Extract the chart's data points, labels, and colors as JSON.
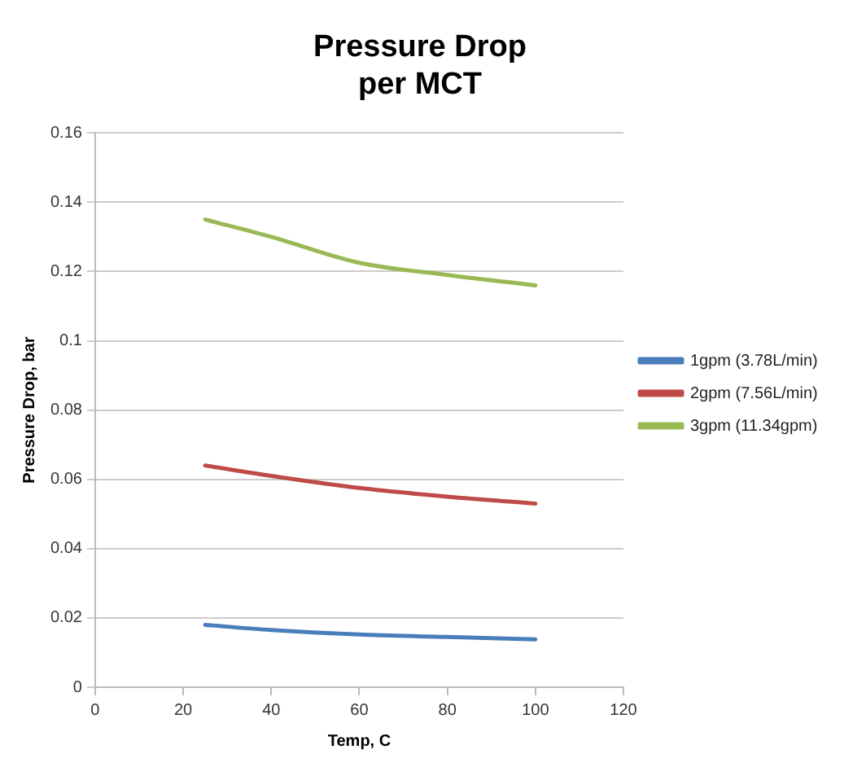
{
  "chart_data": {
    "type": "line",
    "title": "Pressure Drop\nper MCT",
    "xlabel": "Temp, C",
    "ylabel": "Pressure Drop, bar",
    "x": [
      25,
      40,
      60,
      80,
      100
    ],
    "series": [
      {
        "name": "1gpm (3.78L/min)",
        "color": "#4a7ebb",
        "values": [
          0.018,
          0.0165,
          0.0152,
          0.0145,
          0.0138
        ]
      },
      {
        "name": "2gpm (7.56L/min)",
        "color": "#be4b48",
        "values": [
          0.064,
          0.061,
          0.0575,
          0.055,
          0.053
        ]
      },
      {
        "name": "3gpm (11.34gpm)",
        "color": "#98b954",
        "values": [
          0.135,
          0.13,
          0.1225,
          0.119,
          0.116
        ]
      }
    ],
    "xlim": [
      0,
      120
    ],
    "xticks": [
      0,
      20,
      40,
      60,
      80,
      100,
      120
    ],
    "ylim": [
      0,
      0.16
    ],
    "yticks": [
      0,
      0.02,
      0.04,
      0.06,
      0.08,
      0.1,
      0.12,
      0.14,
      0.16
    ],
    "grid": "y",
    "legend": "right",
    "marker": "none",
    "line_style": "solid"
  }
}
